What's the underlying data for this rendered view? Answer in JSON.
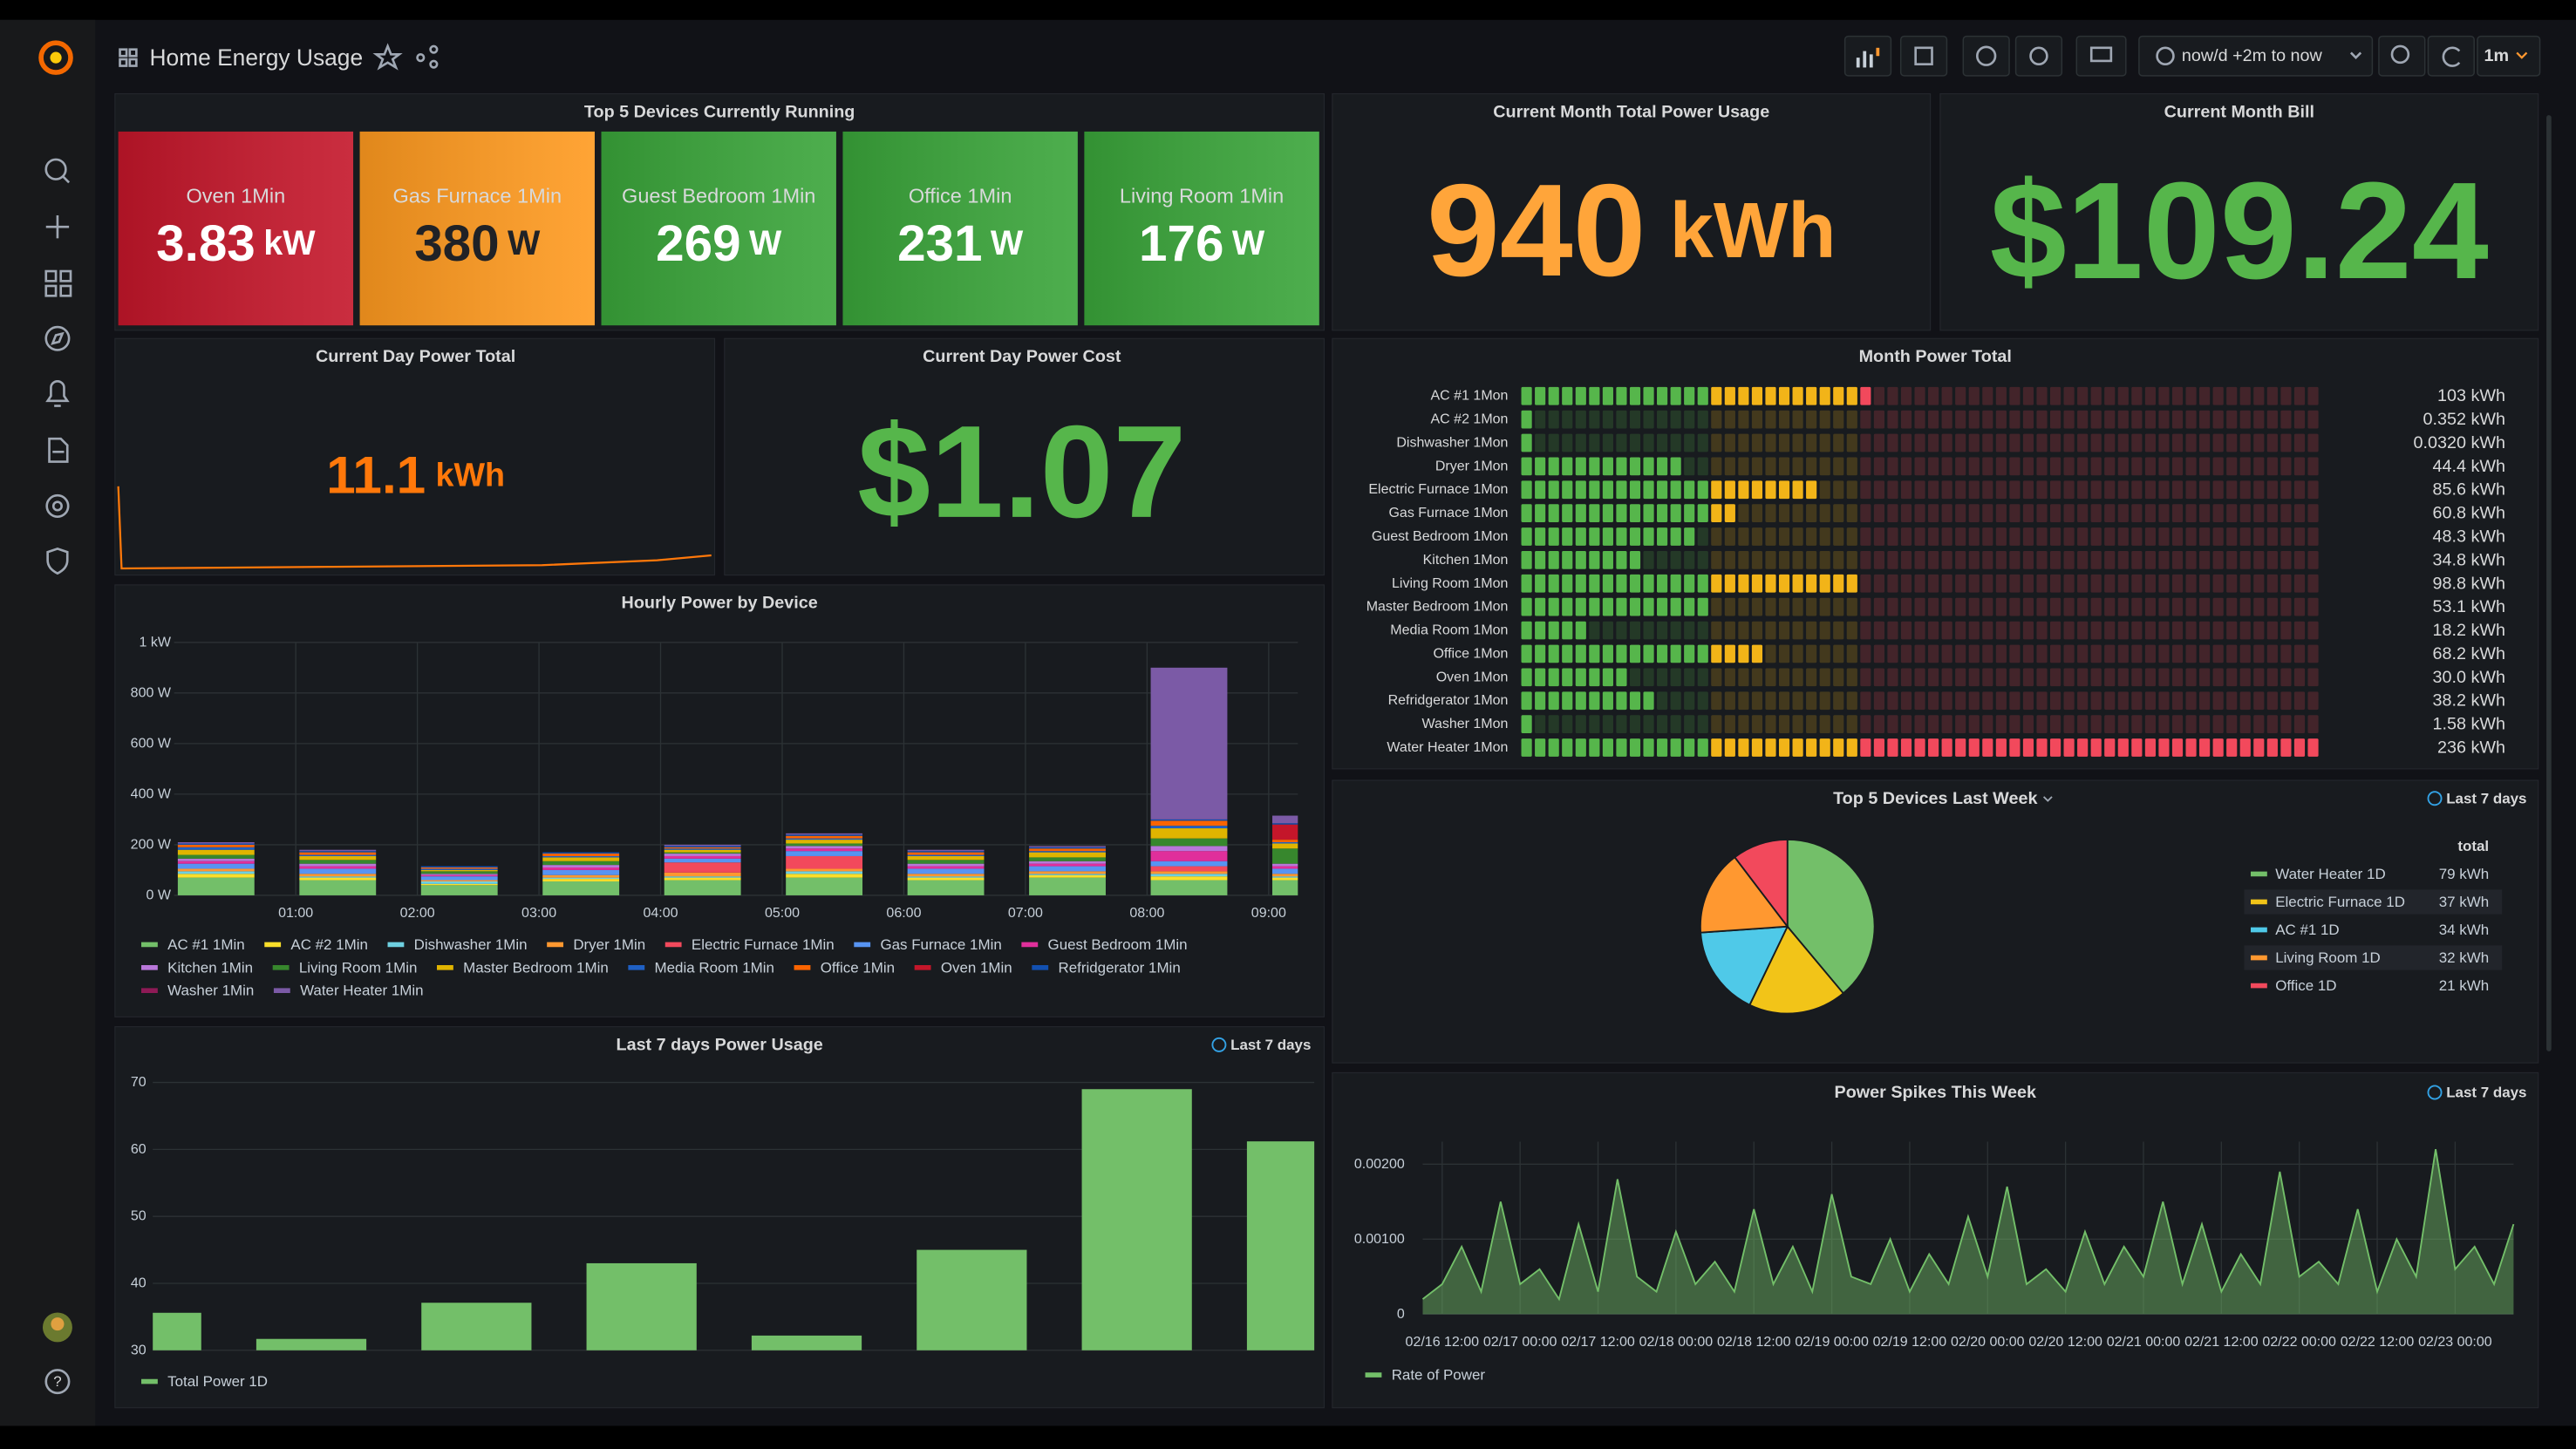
{
  "header": {
    "title": "Home Energy Usage",
    "time_range": "now/d +2m to now",
    "refresh": "1m"
  },
  "top_devices": {
    "title": "Top 5 Devices Currently Running",
    "items": [
      {
        "name": "Oven 1Min",
        "value": 3.83,
        "unit": "kW",
        "color": "#c4162a",
        "text_color": "#ffffff"
      },
      {
        "name": "Gas Furnace 1Min",
        "value": 380,
        "unit": "W",
        "color": "#ff9a1f",
        "text_color": "#202226"
      },
      {
        "name": "Guest Bedroom 1Min",
        "value": 269,
        "unit": "W",
        "color": "#3aa53a",
        "text_color": "#ffffff"
      },
      {
        "name": "Office 1Min",
        "value": 231,
        "unit": "W",
        "color": "#3aa53a",
        "text_color": "#ffffff"
      },
      {
        "name": "Living Room 1Min",
        "value": 176,
        "unit": "W",
        "color": "#3aa53a",
        "text_color": "#ffffff"
      }
    ]
  },
  "month_total": {
    "title": "Current Month Total Power Usage",
    "value": 940,
    "unit": "kWh",
    "color": "#ffa53a"
  },
  "month_bill": {
    "title": "Current Month Bill",
    "value": "$109.24",
    "color": "#56b64b"
  },
  "day_total": {
    "title": "Current Day Power Total",
    "value": 11.1,
    "unit": "kWh",
    "color": "#ff780a"
  },
  "day_cost": {
    "title": "Current Day Power Cost",
    "value": "$1.07",
    "color": "#56b64b"
  },
  "chart_data": [
    {
      "type": "bargauge",
      "title": "Month Power Total",
      "categories": [
        "AC #1 1Mon",
        "AC #2 1Mon",
        "Dishwasher 1Mon",
        "Dryer 1Mon",
        "Electric Furnace 1Mon",
        "Gas Furnace 1Mon",
        "Guest Bedroom 1Mon",
        "Kitchen 1Mon",
        "Living Room 1Mon",
        "Master Bedroom 1Mon",
        "Media Room 1Mon",
        "Office 1Mon",
        "Oven 1Mon",
        "Refridgerator 1Mon",
        "Washer 1Mon",
        "Water Heater 1Mon"
      ],
      "values": [
        103,
        0.352,
        0.032,
        44.4,
        85.6,
        60.8,
        48.3,
        34.8,
        98.8,
        53.1,
        18.2,
        68.2,
        30,
        38.2,
        1.58,
        236
      ],
      "value_labels": [
        "103 kWh",
        "0.352 kWh",
        "0.0320 kWh",
        "44.4 kWh",
        "85.6 kWh",
        "60.8 kWh",
        "48.3 kWh",
        "34.8 kWh",
        "98.8 kWh",
        "53.1 kWh",
        "18.2 kWh",
        "68.2 kWh",
        "30.0 kWh",
        "38.2 kWh",
        "1.58 kWh",
        "236 kWh"
      ],
      "color": "#56b64b",
      "thresholds": [
        {
          "value": 55,
          "color": "#f2b418"
        },
        {
          "value": 100,
          "color": "#f2495c"
        }
      ],
      "cells": 59
    },
    {
      "type": "stacked_bar",
      "title": "Hourly Power by Device",
      "x": [
        0,
        1,
        2,
        3,
        4,
        5,
        6,
        7,
        8,
        9
      ],
      "xlim": [
        0,
        9.24
      ],
      "xticks": [
        {
          "value": 1,
          "label": "01:00"
        },
        {
          "value": 2,
          "label": "02:00"
        },
        {
          "value": 3,
          "label": "03:00"
        },
        {
          "value": 4,
          "label": "04:00"
        },
        {
          "value": 5,
          "label": "05:00"
        },
        {
          "value": 6,
          "label": "06:00"
        },
        {
          "value": 7,
          "label": "07:00"
        },
        {
          "value": 8,
          "label": "08:00"
        },
        {
          "value": 9,
          "label": "09:00"
        }
      ],
      "ylim": [
        0,
        1000
      ],
      "yticks": [
        {
          "value": 0,
          "label": "0 W"
        },
        {
          "value": 200,
          "label": "200 W"
        },
        {
          "value": 400,
          "label": "400 W"
        },
        {
          "value": 600,
          "label": "600 W"
        },
        {
          "value": 800,
          "label": "800 W"
        },
        {
          "value": 1000,
          "label": "1 kW"
        }
      ],
      "grid": true,
      "series": [
        {
          "name": "AC #1 1Min",
          "color": "#73bf69",
          "values": [
            70,
            60,
            40,
            55,
            60,
            70,
            60,
            70,
            60,
            60
          ]
        },
        {
          "name": "AC #2 1Min",
          "color": "#fade2a",
          "values": [
            15,
            10,
            5,
            10,
            10,
            15,
            10,
            10,
            15,
            10
          ]
        },
        {
          "name": "Dishwasher 1Min",
          "color": "#6ed0e0",
          "values": [
            10,
            5,
            10,
            5,
            5,
            10,
            5,
            5,
            10,
            5
          ]
        },
        {
          "name": "Dryer 1Min",
          "color": "#ff9830",
          "values": [
            10,
            10,
            5,
            10,
            15,
            10,
            10,
            10,
            10,
            10
          ]
        },
        {
          "name": "Electric Furnace 1Min",
          "color": "#f2495c",
          "values": [
            0,
            0,
            0,
            0,
            40,
            50,
            0,
            0,
            20,
            0
          ]
        },
        {
          "name": "Gas Furnace 1Min",
          "color": "#5794f2",
          "values": [
            20,
            20,
            15,
            20,
            15,
            20,
            20,
            20,
            20,
            20
          ]
        },
        {
          "name": "Guest Bedroom 1Min",
          "color": "#e02f9b",
          "values": [
            10,
            10,
            5,
            10,
            10,
            10,
            10,
            10,
            40,
            10
          ]
        },
        {
          "name": "Kitchen 1Min",
          "color": "#b877d9",
          "values": [
            10,
            10,
            5,
            10,
            10,
            10,
            10,
            10,
            20,
            10
          ]
        },
        {
          "name": "Living Room 1Min",
          "color": "#37872d",
          "values": [
            15,
            15,
            10,
            15,
            5,
            10,
            15,
            15,
            30,
            60
          ]
        },
        {
          "name": "Master Bedroom 1Min",
          "color": "#e0b400",
          "values": [
            20,
            15,
            5,
            15,
            10,
            15,
            15,
            20,
            40,
            20
          ]
        },
        {
          "name": "Media Room 1Min",
          "color": "#1f60c4",
          "values": [
            10,
            5,
            5,
            5,
            5,
            5,
            5,
            5,
            10,
            5
          ]
        },
        {
          "name": "Office 1Min",
          "color": "#fa6400",
          "values": [
            10,
            10,
            5,
            10,
            5,
            10,
            10,
            10,
            20,
            10
          ]
        },
        {
          "name": "Oven 1Min",
          "color": "#c4162a",
          "values": [
            0,
            0,
            0,
            0,
            0,
            0,
            0,
            0,
            0,
            60
          ]
        },
        {
          "name": "Refridgerator 1Min",
          "color": "#1250b0",
          "values": [
            5,
            5,
            5,
            5,
            5,
            5,
            5,
            5,
            5,
            5
          ]
        },
        {
          "name": "Washer 1Min",
          "color": "#8e1a56",
          "values": [
            0,
            0,
            0,
            0,
            0,
            0,
            0,
            0,
            0,
            0
          ]
        },
        {
          "name": "Water Heater 1Min",
          "color": "#7b5aa6",
          "values": [
            5,
            5,
            0,
            0,
            5,
            5,
            5,
            5,
            600,
            30
          ]
        }
      ]
    },
    {
      "type": "pie",
      "title": "Top 5 Devices Last Week",
      "time_info": "Last 7 days",
      "legend_header": "total",
      "categories": [
        "Water Heater 1D",
        "Electric Furnace 1D",
        "AC #1 1D",
        "Living Room 1D",
        "Office 1D"
      ],
      "values": [
        79,
        37,
        34,
        32,
        21
      ],
      "value_labels": [
        "79 kWh",
        "37 kWh",
        "34 kWh",
        "32 kWh",
        "21 kWh"
      ],
      "colors": [
        "#73bf69",
        "#f2c418",
        "#4fc9e8",
        "#ff9830",
        "#f2495c"
      ]
    },
    {
      "type": "bar",
      "title": "Last 7 days Power Usage",
      "time_info": "Last 7 days",
      "categories": [
        null,
        null,
        null,
        null,
        null,
        null,
        null,
        null
      ],
      "ylim": [
        30,
        71.7
      ],
      "yticks": [
        30,
        40,
        50,
        60,
        70
      ],
      "grid": true,
      "series": [
        {
          "name": "Total Power 1D",
          "color": "#73bf69",
          "values": [
            35.6,
            31.7,
            37.1,
            43,
            32.2,
            45,
            69,
            61.2
          ]
        }
      ]
    },
    {
      "type": "area",
      "title": "Power Spikes This Week",
      "time_info": "Last 7 days",
      "x": [
        "02/16 09:00",
        "02/16 12:00",
        "02/16 15:00",
        "02/16 18:00",
        "02/16 21:00",
        "02/17 00:00",
        "02/17 03:00",
        "02/17 06:00",
        "02/17 09:00",
        "02/17 12:00",
        "02/17 15:00",
        "02/17 18:00",
        "02/17 21:00",
        "02/18 00:00",
        "02/18 03:00",
        "02/18 06:00",
        "02/18 09:00",
        "02/18 12:00",
        "02/18 15:00",
        "02/18 18:00",
        "02/18 21:00",
        "02/19 00:00",
        "02/19 03:00",
        "02/19 06:00",
        "02/19 09:00",
        "02/19 12:00",
        "02/19 15:00",
        "02/19 18:00",
        "02/19 21:00",
        "02/20 00:00",
        "02/20 03:00",
        "02/20 06:00",
        "02/20 09:00",
        "02/20 12:00",
        "02/20 15:00",
        "02/20 18:00",
        "02/20 21:00",
        "02/21 00:00",
        "02/21 03:00",
        "02/21 06:00",
        "02/21 09:00",
        "02/21 12:00",
        "02/21 15:00",
        "02/21 18:00",
        "02/21 21:00",
        "02/22 00:00",
        "02/22 03:00",
        "02/22 06:00",
        "02/22 09:00",
        "02/22 12:00",
        "02/22 15:00",
        "02/22 18:00",
        "02/22 21:00",
        "02/23 00:00",
        "02/23 03:00",
        "02/23 06:00",
        "02/23 09:00"
      ],
      "xlim": [
        "02/16 09:00",
        "02/23 09:00"
      ],
      "xticks": [
        "02/16 12:00",
        "02/17 00:00",
        "02/17 12:00",
        "02/18 00:00",
        "02/18 12:00",
        "02/19 00:00",
        "02/19 12:00",
        "02/20 00:00",
        "02/20 12:00",
        "02/21 00:00",
        "02/21 12:00",
        "02/22 00:00",
        "02/22 12:00",
        "02/23 00:00"
      ],
      "ylim": [
        0,
        0.0023
      ],
      "yticks": [
        0,
        {
          "value": 0.001,
          "label": "0.00100"
        },
        {
          "value": 0.002,
          "label": "0.00200"
        }
      ],
      "grid": true,
      "series": [
        {
          "name": "Rate of Power",
          "color": "#73bf69",
          "values": [
            0.0002,
            0.0004,
            0.0009,
            0.0003,
            0.0015,
            0.0004,
            0.0006,
            0.0002,
            0.0012,
            0.0003,
            0.0018,
            0.0005,
            0.0003,
            0.0011,
            0.0004,
            0.0007,
            0.0003,
            0.0014,
            0.0004,
            0.0009,
            0.0003,
            0.0016,
            0.0005,
            0.0004,
            0.001,
            0.0003,
            0.0008,
            0.0004,
            0.0013,
            0.0005,
            0.0017,
            0.0004,
            0.0006,
            0.0003,
            0.0011,
            0.0004,
            0.0009,
            0.0005,
            0.0015,
            0.0004,
            0.0012,
            0.0003,
            0.0008,
            0.0004,
            0.0019,
            0.0005,
            0.0007,
            0.0004,
            0.0014,
            0.0003,
            0.001,
            0.0005,
            0.0022,
            0.0006,
            0.0009,
            0.0004,
            0.0012
          ]
        }
      ]
    }
  ]
}
